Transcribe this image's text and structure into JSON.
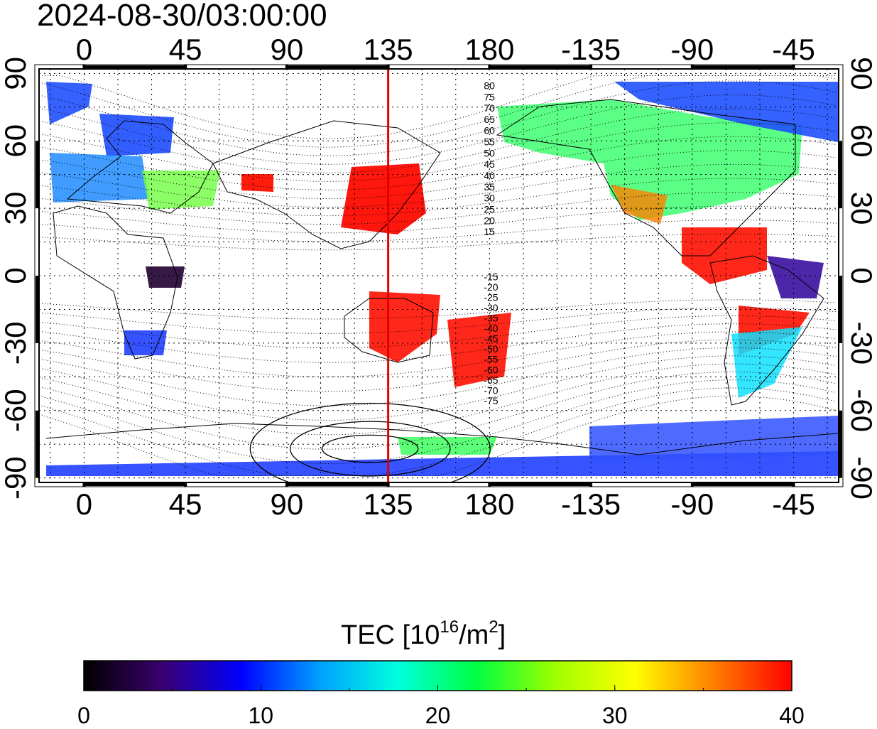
{
  "timestamp": "2024-08-30/03:00:00",
  "map": {
    "lon_tick_labels": [
      "0",
      "45",
      "90",
      "135",
      "180",
      "-135",
      "-90",
      "-45"
    ],
    "lat_tick_labels": [
      "90",
      "60",
      "30",
      "0",
      "-30",
      "-60",
      "-90"
    ],
    "lon_ticks_deg": [
      0,
      45,
      90,
      135,
      180,
      225,
      270,
      315
    ],
    "lat_ticks_deg": [
      90,
      60,
      30,
      0,
      -30,
      -60,
      -90
    ],
    "lon_range_deg": [
      -20,
      335
    ],
    "lat_range_deg": [
      -92,
      92
    ],
    "meridian_marker_lon_deg": 135,
    "meridian_marker_color": "#e00000",
    "magnetic_lat_labels_north": [
      "80",
      "75",
      "70",
      "65",
      "60",
      "55",
      "50",
      "45",
      "40",
      "35",
      "30",
      "25",
      "20",
      "15"
    ],
    "magnetic_lat_labels_south": [
      "-15",
      "-20",
      "-25",
      "-30",
      "-35",
      "-40",
      "-45",
      "-50",
      "-55",
      "-60",
      "-65",
      "-70",
      "-75"
    ],
    "grid": "dotted"
  },
  "colorbar": {
    "title_prefix": "TEC  [10",
    "title_sup1": "16",
    "title_mid": "/m",
    "title_sup2": "2",
    "title_suffix": "]",
    "tick_labels": [
      "0",
      "10",
      "20",
      "30",
      "40"
    ],
    "tick_values": [
      0,
      10,
      20,
      30,
      40
    ],
    "range": [
      0,
      40
    ],
    "colors": [
      "#000000",
      "#3a0070",
      "#0000ff",
      "#00a0ff",
      "#00ffdd",
      "#00ff40",
      "#a0ff00",
      "#ffff00",
      "#ff8000",
      "#ff0000"
    ]
  }
}
